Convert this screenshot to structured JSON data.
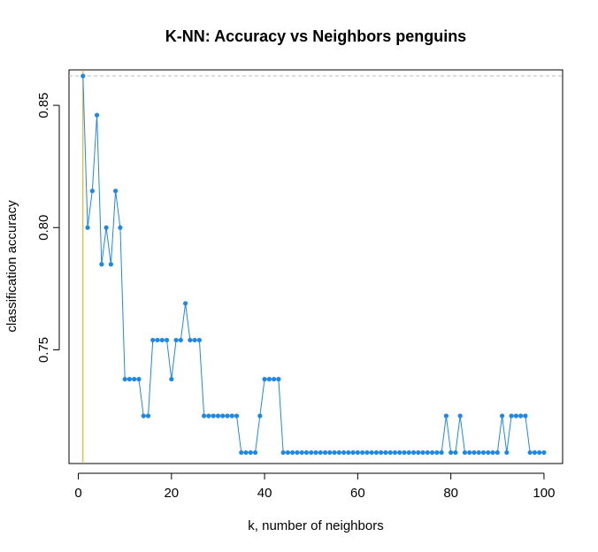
{
  "chart_data": {
    "type": "line",
    "title": "K-NN: Accuracy vs Neighbors  penguins",
    "xlabel": "k, number of neighbors",
    "ylabel": "classification accuracy",
    "xlim": [
      -2,
      104
    ],
    "ylim": [
      0.7035,
      0.8645
    ],
    "xticks": [
      0,
      20,
      40,
      60,
      80,
      100
    ],
    "xtick_labels": [
      "0",
      "20",
      "40",
      "60",
      "80",
      "100"
    ],
    "yticks": [
      0.75,
      0.8,
      0.85
    ],
    "ytick_labels": [
      "0.75",
      "0.80",
      "0.85"
    ],
    "grid": false,
    "reference_lines": {
      "horizontal_y": 0.862,
      "vertical_x": 1,
      "horizontal_color": "#bebebe",
      "vertical_color": "#e6a000"
    },
    "series": [
      {
        "color": "#1e88e5",
        "x": [
          1,
          2,
          3,
          4,
          5,
          6,
          7,
          8,
          9,
          10,
          11,
          12,
          13,
          14,
          15,
          16,
          17,
          18,
          19,
          20,
          21,
          22,
          23,
          24,
          25,
          26,
          27,
          28,
          29,
          30,
          31,
          32,
          33,
          34,
          35,
          36,
          37,
          38,
          39,
          40,
          41,
          42,
          43,
          44,
          45,
          46,
          47,
          48,
          49,
          50,
          51,
          52,
          53,
          54,
          55,
          56,
          57,
          58,
          59,
          60,
          61,
          62,
          63,
          64,
          65,
          66,
          67,
          68,
          69,
          70,
          71,
          72,
          73,
          74,
          75,
          76,
          77,
          78,
          79,
          80,
          81,
          82,
          83,
          84,
          85,
          86,
          87,
          88,
          89,
          90,
          91,
          92,
          93,
          94,
          95,
          96,
          97,
          98,
          99,
          100
        ],
        "values": [
          0.862,
          0.8,
          0.815,
          0.846,
          0.785,
          0.8,
          0.785,
          0.815,
          0.8,
          0.738,
          0.738,
          0.738,
          0.738,
          0.723,
          0.723,
          0.754,
          0.754,
          0.754,
          0.754,
          0.738,
          0.754,
          0.754,
          0.769,
          0.754,
          0.754,
          0.754,
          0.723,
          0.723,
          0.723,
          0.723,
          0.723,
          0.723,
          0.723,
          0.723,
          0.708,
          0.708,
          0.708,
          0.708,
          0.723,
          0.738,
          0.738,
          0.738,
          0.738,
          0.708,
          0.708,
          0.708,
          0.708,
          0.708,
          0.708,
          0.708,
          0.708,
          0.708,
          0.708,
          0.708,
          0.708,
          0.708,
          0.708,
          0.708,
          0.708,
          0.708,
          0.708,
          0.708,
          0.708,
          0.708,
          0.708,
          0.708,
          0.708,
          0.708,
          0.708,
          0.708,
          0.708,
          0.708,
          0.708,
          0.708,
          0.708,
          0.708,
          0.708,
          0.708,
          0.723,
          0.708,
          0.708,
          0.723,
          0.708,
          0.708,
          0.708,
          0.708,
          0.708,
          0.708,
          0.708,
          0.708,
          0.723,
          0.708,
          0.723,
          0.723,
          0.723,
          0.723,
          0.708,
          0.708,
          0.708,
          0.708
        ]
      }
    ]
  }
}
